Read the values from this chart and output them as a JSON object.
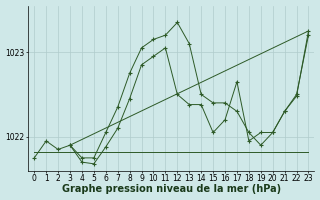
{
  "xlabel": "Graphe pression niveau de la mer (hPa)",
  "bg_color": "#cfe8e8",
  "grid_color": "#b0cccc",
  "line_color": "#2d5a27",
  "ylim": [
    1021.6,
    1023.55
  ],
  "xlim": [
    -0.5,
    23.5
  ],
  "yticks": [
    1022,
    1023
  ],
  "xticks": [
    0,
    1,
    2,
    3,
    4,
    5,
    6,
    7,
    8,
    9,
    10,
    11,
    12,
    13,
    14,
    15,
    16,
    17,
    18,
    19,
    20,
    21,
    22,
    23
  ],
  "series": [
    {
      "x": [
        0,
        1,
        2,
        3,
        4,
        5,
        6,
        7,
        8,
        9,
        10,
        11,
        12,
        13,
        14,
        15,
        16,
        17,
        18,
        19,
        20,
        21,
        22,
        23
      ],
      "y": [
        1021.75,
        1021.95,
        1021.85,
        1021.9,
        1021.75,
        1021.75,
        1022.05,
        1022.35,
        1022.75,
        1023.05,
        1023.15,
        1023.2,
        1023.35,
        1023.1,
        1022.5,
        1022.4,
        1022.4,
        1022.3,
        1022.05,
        1021.9,
        1022.05,
        1022.3,
        1022.5,
        1023.2
      ],
      "has_markers": true
    },
    {
      "x": [
        0,
        23
      ],
      "y": [
        1021.82,
        1021.82
      ],
      "has_markers": false
    },
    {
      "x": [
        3,
        4,
        5,
        6,
        7,
        8,
        9,
        10,
        11,
        12,
        13,
        14,
        15,
        16,
        17,
        18,
        19,
        20,
        21,
        22,
        23
      ],
      "y": [
        1021.9,
        1021.7,
        1021.68,
        1021.88,
        1022.1,
        1022.45,
        1022.85,
        1022.95,
        1023.05,
        1022.5,
        1022.38,
        1022.38,
        1022.05,
        1022.2,
        1022.65,
        1021.95,
        1022.05,
        1022.05,
        1022.3,
        1022.48,
        1023.25
      ],
      "has_markers": true
    },
    {
      "x": [
        3,
        23
      ],
      "y": [
        1021.9,
        1023.25
      ],
      "has_markers": false
    }
  ],
  "xlabel_fontsize": 7,
  "tick_fontsize": 5.5
}
